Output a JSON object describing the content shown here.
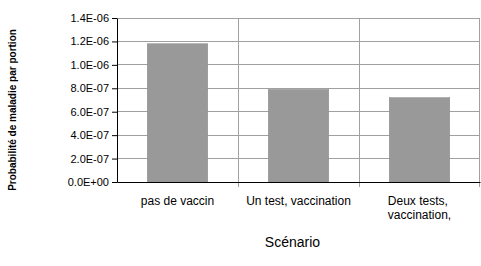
{
  "chart_data": {
    "type": "bar",
    "x_label": "Scénario",
    "y_label": "Probabilité de maladie par portion",
    "categories": [
      "pas de vaccin",
      "Un test, vaccination",
      "Deux tests, vaccination,"
    ],
    "values": [
      1.18e-06,
      7.9e-07,
      7.2e-07
    ],
    "color": "#999999",
    "ylim": [
      0,
      1.4e-06
    ],
    "yticks": [
      {
        "value": 0,
        "label": "0.0E+00"
      },
      {
        "value": 2e-07,
        "label": "2.0E-07"
      },
      {
        "value": 4e-07,
        "label": "4.0E-07"
      },
      {
        "value": 6e-07,
        "label": "6.0E-07"
      },
      {
        "value": 8e-07,
        "label": "8.0E-07"
      },
      {
        "value": 1e-06,
        "label": "1.0E-06"
      },
      {
        "value": 1.2e-06,
        "label": "1.2E-06"
      },
      {
        "value": 1.4e-06,
        "label": "1.4E-06"
      }
    ],
    "grid": true
  }
}
